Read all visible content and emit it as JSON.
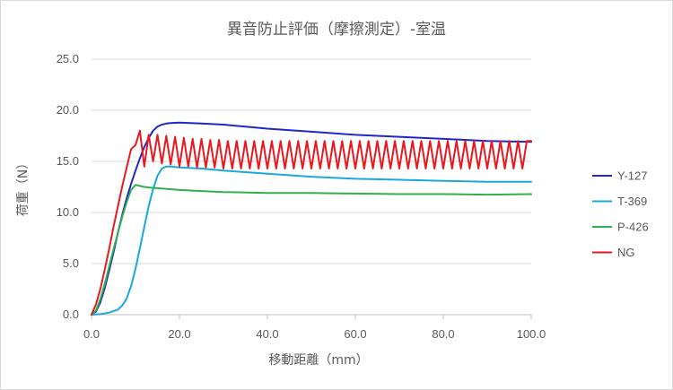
{
  "chart_data": {
    "type": "line",
    "title": "異音防止評価（摩擦測定）-室温",
    "xlabel": "移動距離（mm）",
    "ylabel": "荷重（N）",
    "xlim": [
      0,
      100
    ],
    "ylim": [
      0,
      25
    ],
    "x_ticks": [
      "0.0",
      "20.0",
      "40.0",
      "60.0",
      "80.0",
      "100.0"
    ],
    "y_ticks": [
      "0.0",
      "5.0",
      "10.0",
      "15.0",
      "20.0",
      "25.0"
    ],
    "grid": "horizontal",
    "legend_position": "right",
    "series": [
      {
        "name": "Y-127",
        "color": "#1f27c8",
        "x": [
          0,
          1,
          2,
          3,
          4,
          5,
          6,
          7,
          8,
          9,
          10,
          11,
          12,
          13,
          14,
          15,
          16,
          17,
          18,
          20,
          25,
          30,
          35,
          40,
          50,
          60,
          70,
          80,
          90,
          100
        ],
        "y": [
          0,
          0.3,
          1.2,
          2.6,
          4.3,
          6.1,
          8.0,
          9.8,
          11.4,
          12.8,
          14.1,
          15.3,
          16.4,
          17.3,
          18.0,
          18.4,
          18.6,
          18.7,
          18.75,
          18.8,
          18.7,
          18.6,
          18.4,
          18.2,
          17.9,
          17.6,
          17.4,
          17.2,
          17.0,
          16.9
        ]
      },
      {
        "name": "T-369",
        "color": "#1aa9df",
        "x": [
          0,
          2,
          4,
          6,
          7,
          8,
          9,
          10,
          11,
          12,
          13,
          14,
          15,
          16,
          17,
          18,
          19,
          20,
          25,
          30,
          40,
          50,
          60,
          70,
          80,
          90,
          100
        ],
        "y": [
          0,
          0.05,
          0.2,
          0.5,
          0.9,
          1.6,
          2.8,
          4.5,
          6.5,
          8.6,
          10.6,
          12.3,
          13.6,
          14.3,
          14.5,
          14.5,
          14.45,
          14.4,
          14.3,
          14.1,
          13.8,
          13.5,
          13.3,
          13.2,
          13.1,
          13.0,
          13.0
        ]
      },
      {
        "name": "P-426",
        "color": "#2fb14f",
        "x": [
          0,
          1,
          2,
          3,
          4,
          5,
          6,
          7,
          8,
          9,
          10,
          11,
          12,
          14,
          16,
          20,
          25,
          30,
          40,
          50,
          60,
          70,
          80,
          90,
          100
        ],
        "y": [
          0,
          0.4,
          1.5,
          3.0,
          4.7,
          6.4,
          8.0,
          9.6,
          11.0,
          12.2,
          12.7,
          12.6,
          12.5,
          12.4,
          12.35,
          12.2,
          12.1,
          12.0,
          11.9,
          11.9,
          11.85,
          11.8,
          11.8,
          11.75,
          11.8
        ]
      },
      {
        "name": "NG",
        "color": "#e8191f",
        "x": [
          0,
          1,
          2,
          3,
          4,
          5,
          6,
          7,
          8,
          9,
          10,
          11,
          12,
          13,
          14,
          15,
          16,
          17,
          18,
          19,
          20,
          21,
          22,
          23,
          24,
          25,
          26,
          27,
          28,
          29,
          30,
          31,
          32,
          33,
          34,
          35,
          36,
          37,
          38,
          39,
          40,
          41,
          42,
          43,
          44,
          45,
          46,
          47,
          48,
          49,
          50,
          51,
          52,
          53,
          54,
          55,
          56,
          57,
          58,
          59,
          60,
          61,
          62,
          63,
          64,
          65,
          66,
          67,
          68,
          69,
          70,
          71,
          72,
          73,
          74,
          75,
          76,
          77,
          78,
          79,
          80,
          81,
          82,
          83,
          84,
          85,
          86,
          87,
          88,
          89,
          90,
          91,
          92,
          93,
          94,
          95,
          96,
          97,
          98,
          99,
          100
        ],
        "y": [
          0,
          1.0,
          2.5,
          4.4,
          6.4,
          8.6,
          10.6,
          12.6,
          14.4,
          16.2,
          16.6,
          18.0,
          14.5,
          17.6,
          15.0,
          17.6,
          14.8,
          17.5,
          14.7,
          17.4,
          14.5,
          17.3,
          14.5,
          17.2,
          14.4,
          17.2,
          14.4,
          17.1,
          14.4,
          17.1,
          14.3,
          17.0,
          14.3,
          17.0,
          14.3,
          17.0,
          14.3,
          17.0,
          14.3,
          17.0,
          14.3,
          17.0,
          14.3,
          17.0,
          14.3,
          17.0,
          14.3,
          17.0,
          14.3,
          17.0,
          14.3,
          17.0,
          14.3,
          17.0,
          14.3,
          17.0,
          14.3,
          17.0,
          14.3,
          17.0,
          14.3,
          17.0,
          14.3,
          17.0,
          14.3,
          17.0,
          14.3,
          17.0,
          14.3,
          17.0,
          14.3,
          17.0,
          14.3,
          17.0,
          14.3,
          17.0,
          14.3,
          17.0,
          14.3,
          17.0,
          14.3,
          17.0,
          14.3,
          17.0,
          14.3,
          17.0,
          14.3,
          17.0,
          14.3,
          17.0,
          14.3,
          17.0,
          14.3,
          17.0,
          14.3,
          17.0,
          14.3,
          17.0,
          14.3,
          17.0,
          17.0
        ]
      }
    ]
  }
}
